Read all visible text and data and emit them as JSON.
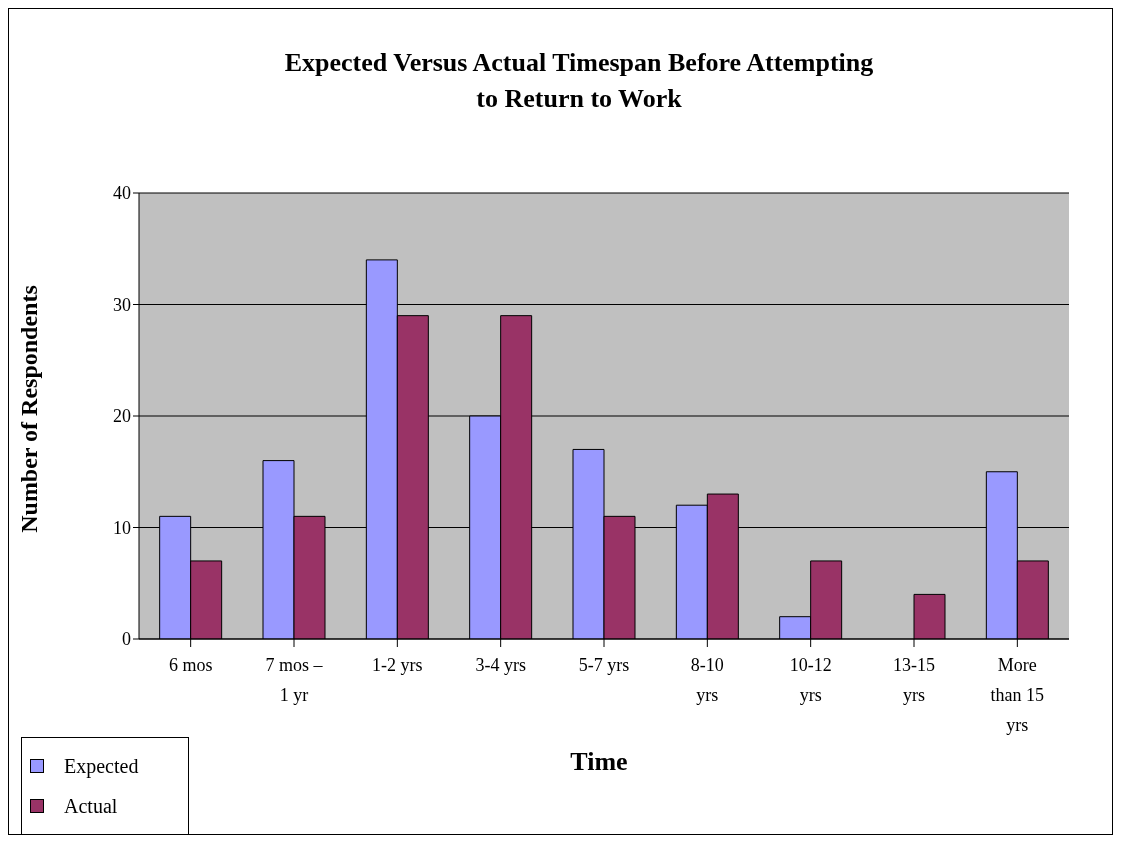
{
  "chart_data": {
    "type": "bar",
    "title": "Expected Versus Actual Timespan Before Attempting to Return to Work",
    "xlabel": "Time",
    "ylabel": "Number of Respondents",
    "categories": [
      "6 mos",
      "7 mos – 1 yr",
      "1-2 yrs",
      "3-4 yrs",
      "5-7 yrs",
      "8-10 yrs",
      "10-12 yrs",
      "13-15 yrs",
      "More than 15 yrs"
    ],
    "series": [
      {
        "name": "Expected",
        "color": "#9999ff",
        "values": [
          11,
          16,
          34,
          20,
          17,
          12,
          2,
          0,
          15
        ]
      },
      {
        "name": "Actual",
        "color": "#993366",
        "values": [
          7,
          11,
          29,
          29,
          11,
          13,
          7,
          4,
          7
        ]
      }
    ],
    "ylim": [
      0,
      40
    ],
    "yticks": [
      0,
      10,
      20,
      30,
      40
    ],
    "grid": "y",
    "legend": "bottom left"
  }
}
